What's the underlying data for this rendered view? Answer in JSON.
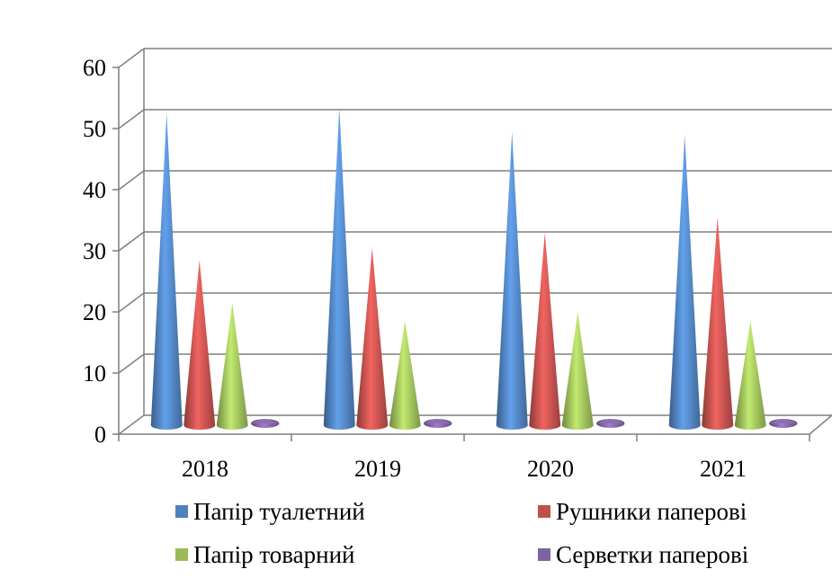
{
  "chart_data": {
    "type": "bar",
    "categories": [
      "2018",
      "2019",
      "2020",
      "2021"
    ],
    "series": [
      {
        "name": "Папір туалетний",
        "values": [
          51,
          52,
          48,
          47.5
        ],
        "color": "#4F81BD"
      },
      {
        "name": "Рушники паперові",
        "values": [
          27,
          29,
          31.5,
          34
        ],
        "color": "#C0504D"
      },
      {
        "name": "Папір товарний",
        "values": [
          20,
          17,
          18.5,
          17
        ],
        "color": "#9BBB59"
      },
      {
        "name": "Серветки паперові",
        "values": [
          0.5,
          0.6,
          0.3,
          0.3
        ],
        "color": "#8064A2"
      }
    ],
    "ylim": [
      0,
      60
    ],
    "yticks": [
      "0",
      "10",
      "20",
      "30",
      "40",
      "50",
      "60"
    ],
    "grid": true,
    "legend_position": "bottom",
    "bar_shape": "cone"
  }
}
